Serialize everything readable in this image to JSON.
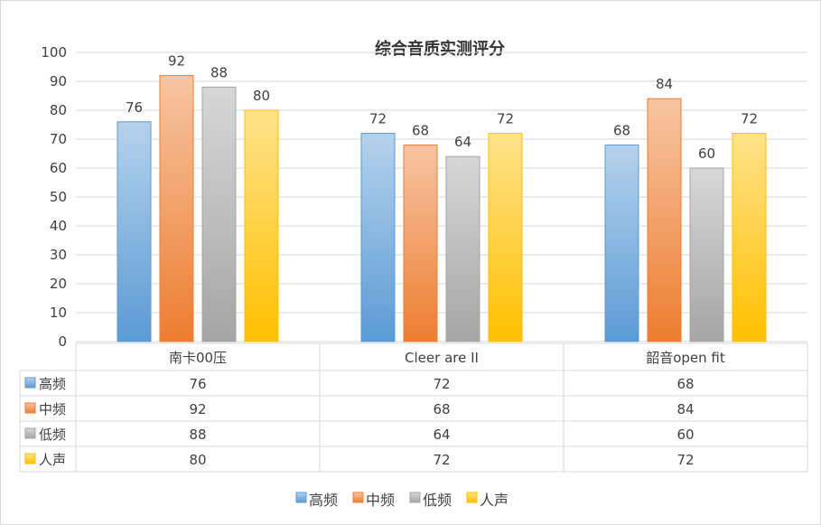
{
  "chart_data": {
    "type": "bar",
    "title": "综合音质实测评分",
    "categories": [
      "南卡00压",
      "Cleer are II",
      "韶音open fit"
    ],
    "series": [
      {
        "name": "高频",
        "values": [
          76,
          72,
          68
        ],
        "color": "#5b9bd5"
      },
      {
        "name": "中频",
        "values": [
          92,
          68,
          84
        ],
        "color": "#ed7d31"
      },
      {
        "name": "低频",
        "values": [
          88,
          64,
          60
        ],
        "color": "#a5a5a5"
      },
      {
        "name": "人声",
        "values": [
          80,
          72,
          72
        ],
        "color": "#ffc000"
      }
    ],
    "ylim": [
      0,
      100
    ],
    "yticks": [
      0,
      10,
      20,
      30,
      40,
      50,
      60,
      70,
      80,
      90,
      100
    ],
    "grid": true,
    "data_table": true,
    "legend_position": "bottom"
  }
}
